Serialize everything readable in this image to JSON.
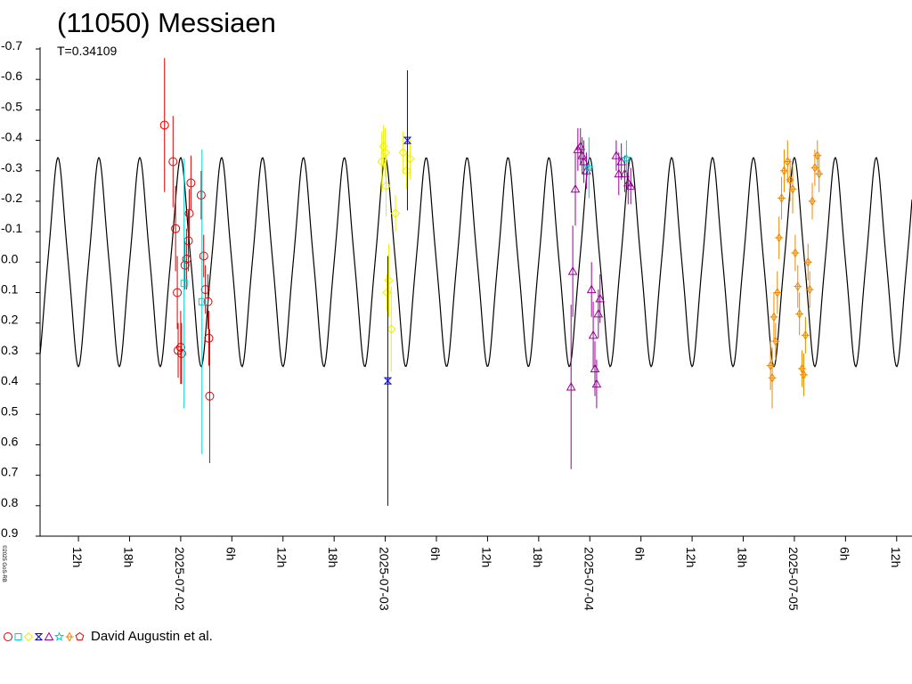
{
  "chart_data": {
    "type": "scatter",
    "title": "(11050) Messiaen",
    "subtitle": "T=0.34109",
    "copyright": "©2025 GoS-RB",
    "y_ticks": [
      "-0.7",
      "-0.6",
      "-0.5",
      "-0.4",
      "-0.3",
      "-0.2",
      "-0.1",
      "0.0",
      "0.1",
      "0.2",
      "0.3",
      "0.4",
      "0.5",
      "0.6",
      "0.7",
      "0.8",
      "0.9"
    ],
    "ylim": [
      -0.7,
      0.9
    ],
    "y_inverted": true,
    "xlim_hours": [
      -16.5,
      85.8
    ],
    "x_ticks": [
      {
        "label": "12h",
        "h": -12
      },
      {
        "label": "18h",
        "h": -6
      },
      {
        "label": "2025-07-02",
        "h": 0
      },
      {
        "label": "6h",
        "h": 6
      },
      {
        "label": "12h",
        "h": 12
      },
      {
        "label": "18h",
        "h": 18
      },
      {
        "label": "2025-07-03",
        "h": 24
      },
      {
        "label": "6h",
        "h": 30
      },
      {
        "label": "12h",
        "h": 36
      },
      {
        "label": "18h",
        "h": 42
      },
      {
        "label": "2025-07-04",
        "h": 48
      },
      {
        "label": "6h",
        "h": 54
      },
      {
        "label": "12h",
        "h": 60
      },
      {
        "label": "18h",
        "h": 66
      },
      {
        "label": "2025-07-05",
        "h": 72
      },
      {
        "label": "6h",
        "h": 78
      },
      {
        "label": "12h",
        "h": 84
      }
    ],
    "model_curve": {
      "period_hours": 4.8,
      "amplitude": 0.33
    },
    "legend": {
      "text": "David Augustin et al."
    },
    "series": [
      {
        "color": "#dd0000",
        "shape": "circle",
        "points": [
          {
            "h": -1.9,
            "y": -0.45,
            "e": 0.22
          },
          {
            "h": -0.9,
            "y": -0.33,
            "e": 0.15
          },
          {
            "h": -0.6,
            "y": -0.11,
            "e": 0.14
          },
          {
            "h": -0.4,
            "y": 0.1,
            "e": 0.12
          },
          {
            "h": -0.3,
            "y": 0.29,
            "e": 0.09
          },
          {
            "h": 0.0,
            "y": 0.28,
            "e": 0.12
          },
          {
            "h": 0.1,
            "y": 0.3,
            "e": 0.1
          },
          {
            "h": 0.5,
            "y": 0.01,
            "e": 0.08
          },
          {
            "h": 0.7,
            "y": -0.01,
            "e": 0.1
          },
          {
            "h": 0.9,
            "y": -0.07,
            "e": 0.1
          },
          {
            "h": 1.0,
            "y": -0.16,
            "e": 0.08
          },
          {
            "h": 1.2,
            "y": -0.26,
            "e": 0.09
          },
          {
            "h": 2.4,
            "y": -0.22,
            "e": 0.08
          },
          {
            "h": 2.7,
            "y": -0.02,
            "e": 0.07
          },
          {
            "h": 2.9,
            "y": 0.09,
            "e": 0.08
          },
          {
            "h": 3.2,
            "y": 0.13,
            "e": 0.09
          },
          {
            "h": 3.3,
            "y": 0.25,
            "e": 0.09
          },
          {
            "h": 3.4,
            "y": 0.44,
            "e": 0.22
          }
        ]
      },
      {
        "color": "#00cccc",
        "shape": "square",
        "points": [
          {
            "h": 0.4,
            "y": 0.07,
            "e": 0.41
          },
          {
            "h": 2.5,
            "y": 0.13,
            "e": 0.5
          }
        ]
      },
      {
        "color": "#eeee00",
        "shape": "diamond",
        "points": [
          {
            "h": 23.6,
            "y": -0.33,
            "e": 0.1
          },
          {
            "h": 23.8,
            "y": -0.38,
            "e": 0.07
          },
          {
            "h": 24.0,
            "y": -0.36,
            "e": 0.08
          },
          {
            "h": 24.1,
            "y": -0.25,
            "e": 0.1
          },
          {
            "h": 24.2,
            "y": 0.1,
            "e": 0.06
          },
          {
            "h": 24.4,
            "y": 0.06,
            "e": 0.12
          },
          {
            "h": 24.7,
            "y": 0.22,
            "e": 0.14
          },
          {
            "h": 25.2,
            "y": -0.16,
            "e": 0.06
          },
          {
            "h": 26.1,
            "y": -0.36,
            "e": 0.07
          },
          {
            "h": 26.5,
            "y": -0.3,
            "e": 0.06
          },
          {
            "h": 26.9,
            "y": -0.34,
            "e": 0.07
          }
        ]
      },
      {
        "color": "#0000cc",
        "shape": "hourglass",
        "points": [
          {
            "h": 24.3,
            "y": 0.39,
            "e": 0.41
          },
          {
            "h": 26.6,
            "y": -0.4,
            "e": 0.23
          }
        ]
      },
      {
        "color": "#990099",
        "shape": "triangle",
        "points": [
          {
            "h": 45.8,
            "y": 0.41,
            "e": 0.27
          },
          {
            "h": 46.0,
            "y": 0.03,
            "e": 0.15
          },
          {
            "h": 46.3,
            "y": -0.24,
            "e": 0.12
          },
          {
            "h": 46.6,
            "y": -0.37,
            "e": 0.07
          },
          {
            "h": 46.9,
            "y": -0.38,
            "e": 0.06
          },
          {
            "h": 47.1,
            "y": -0.35,
            "e": 0.06
          },
          {
            "h": 47.3,
            "y": -0.33,
            "e": 0.07
          },
          {
            "h": 47.6,
            "y": -0.3,
            "e": 0.06
          },
          {
            "h": 48.2,
            "y": 0.09,
            "e": 0.09
          },
          {
            "h": 48.4,
            "y": 0.24,
            "e": 0.11
          },
          {
            "h": 48.6,
            "y": 0.35,
            "e": 0.09
          },
          {
            "h": 48.8,
            "y": 0.4,
            "e": 0.08
          },
          {
            "h": 49.0,
            "y": 0.17,
            "e": 0.08
          },
          {
            "h": 49.2,
            "y": 0.12,
            "e": 0.08
          },
          {
            "h": 51.1,
            "y": -0.35,
            "e": 0.05
          },
          {
            "h": 51.4,
            "y": -0.29,
            "e": 0.07
          },
          {
            "h": 51.7,
            "y": -0.33,
            "e": 0.06
          },
          {
            "h": 52.1,
            "y": -0.29,
            "e": 0.06
          },
          {
            "h": 52.5,
            "y": -0.26,
            "e": 0.07
          },
          {
            "h": 52.8,
            "y": -0.25,
            "e": 0.06
          }
        ]
      },
      {
        "color": "#00cccc",
        "shape": "star",
        "points": [
          {
            "h": 47.9,
            "y": -0.31,
            "e": 0.1
          },
          {
            "h": 52.3,
            "y": -0.34,
            "e": 0.06
          }
        ]
      },
      {
        "color": "#ee8800",
        "shape": "cross-diamond",
        "points": [
          {
            "h": 69.2,
            "y": 0.34,
            "e": 0.08
          },
          {
            "h": 69.4,
            "y": 0.38,
            "e": 0.1
          },
          {
            "h": 69.6,
            "y": 0.18,
            "e": 0.08
          },
          {
            "h": 69.8,
            "y": 0.26,
            "e": 0.06
          },
          {
            "h": 70.0,
            "y": 0.1,
            "e": 0.07
          },
          {
            "h": 70.2,
            "y": -0.08,
            "e": 0.07
          },
          {
            "h": 70.5,
            "y": -0.21,
            "e": 0.07
          },
          {
            "h": 70.8,
            "y": -0.3,
            "e": 0.07
          },
          {
            "h": 71.2,
            "y": -0.33,
            "e": 0.07
          },
          {
            "h": 71.5,
            "y": -0.27,
            "e": 0.07
          },
          {
            "h": 71.8,
            "y": -0.24,
            "e": 0.08
          },
          {
            "h": 72.1,
            "y": -0.03,
            "e": 0.06
          },
          {
            "h": 72.4,
            "y": 0.08,
            "e": 0.07
          },
          {
            "h": 72.6,
            "y": 0.17,
            "e": 0.07
          },
          {
            "h": 72.9,
            "y": 0.35,
            "e": 0.06
          },
          {
            "h": 73.1,
            "y": 0.37,
            "e": 0.07
          },
          {
            "h": 73.3,
            "y": 0.24,
            "e": 0.06
          },
          {
            "h": 73.6,
            "y": 0.0,
            "e": 0.06
          },
          {
            "h": 73.8,
            "y": 0.09,
            "e": 0.06
          },
          {
            "h": 74.1,
            "y": -0.2,
            "e": 0.06
          },
          {
            "h": 74.4,
            "y": -0.31,
            "e": 0.06
          },
          {
            "h": 74.7,
            "y": -0.35,
            "e": 0.05
          },
          {
            "h": 74.9,
            "y": -0.29,
            "e": 0.06
          }
        ]
      }
    ]
  }
}
